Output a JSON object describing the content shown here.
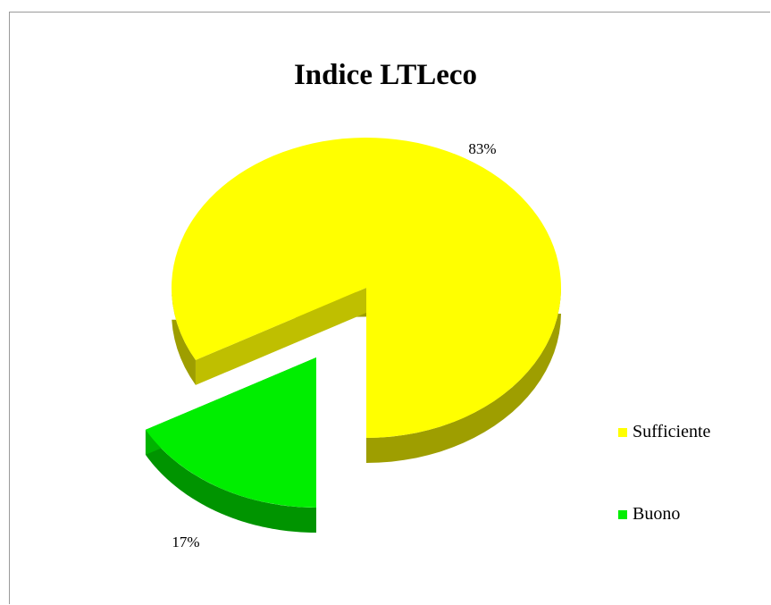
{
  "chart_data": {
    "type": "pie",
    "title": "Indice LTLeco",
    "three_d": true,
    "exploded": true,
    "legend_position": "right",
    "categories": [
      "Sufficiente",
      "Buono"
    ],
    "values": [
      83,
      17
    ],
    "data_labels": [
      "83%",
      "17%"
    ],
    "colors": [
      "#ffff00",
      "#00ee00"
    ]
  }
}
